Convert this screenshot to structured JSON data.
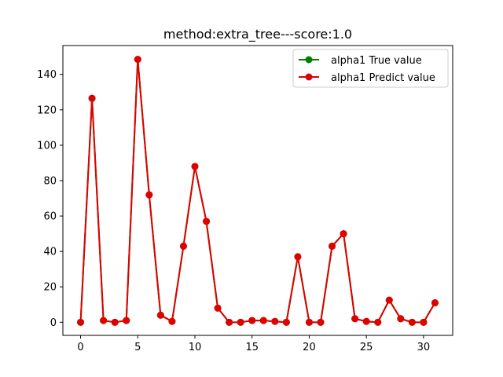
{
  "chart_data": {
    "type": "line",
    "title": "method:extra_tree---score:1.0",
    "xlabel": "",
    "ylabel": "",
    "xlim": [
      -1.55,
      32.55
    ],
    "ylim": [
      -7.4,
      156.3
    ],
    "xticks": [
      0,
      5,
      10,
      15,
      20,
      25,
      30
    ],
    "yticks": [
      0,
      20,
      40,
      60,
      80,
      100,
      120,
      140
    ],
    "grid": false,
    "legend_position": "top-right",
    "x": [
      0,
      1,
      2,
      3,
      4,
      5,
      6,
      7,
      8,
      9,
      10,
      11,
      12,
      13,
      14,
      15,
      16,
      17,
      18,
      19,
      20,
      21,
      22,
      23,
      24,
      25,
      26,
      27,
      28,
      29,
      30,
      31
    ],
    "series": [
      {
        "name": "alpha1 True value",
        "color": "#008000",
        "values": [
          0,
          126.5,
          1,
          0,
          1,
          148.5,
          72,
          4,
          0.5,
          43,
          88,
          57,
          8,
          0,
          0,
          1,
          1,
          0.5,
          0,
          37,
          0,
          0,
          43,
          50,
          2,
          0.5,
          0,
          12.5,
          2,
          0,
          0,
          11
        ]
      },
      {
        "name": "alpha1 Predict value",
        "color": "#e00000",
        "values": [
          0,
          126.5,
          1,
          0,
          1,
          148.5,
          72,
          4,
          0.5,
          43,
          88,
          57,
          8,
          0,
          0,
          1,
          1,
          0.5,
          0,
          37,
          0,
          0,
          43,
          50,
          2,
          0.5,
          0,
          12.5,
          2,
          0,
          0,
          11
        ]
      }
    ]
  }
}
